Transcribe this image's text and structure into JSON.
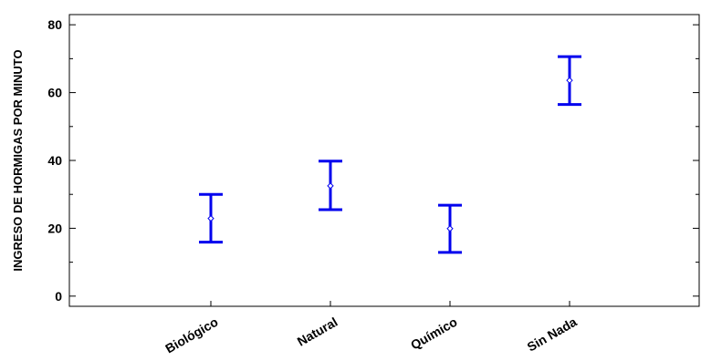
{
  "chart_data": {
    "type": "errorbar",
    "title": "",
    "xlabel": "",
    "ylabel": "INGRESO DE HORMIGAS POR MINUTO",
    "ylim": [
      -3,
      83
    ],
    "yticks": [
      0,
      20,
      40,
      60,
      80
    ],
    "grid": false,
    "categories": [
      "Biológico",
      "Natural",
      "Químico",
      "Sin Nada"
    ],
    "series": [
      {
        "means": [
          22.9,
          32.5,
          19.9,
          63.6
        ],
        "lower": [
          15.9,
          25.5,
          12.9,
          56.5
        ],
        "upper": [
          30.0,
          39.8,
          26.8,
          70.6
        ]
      }
    ],
    "colors": {
      "interval": "#0000ee",
      "mean_marker": "#0000ee",
      "axis": "#000000"
    }
  }
}
